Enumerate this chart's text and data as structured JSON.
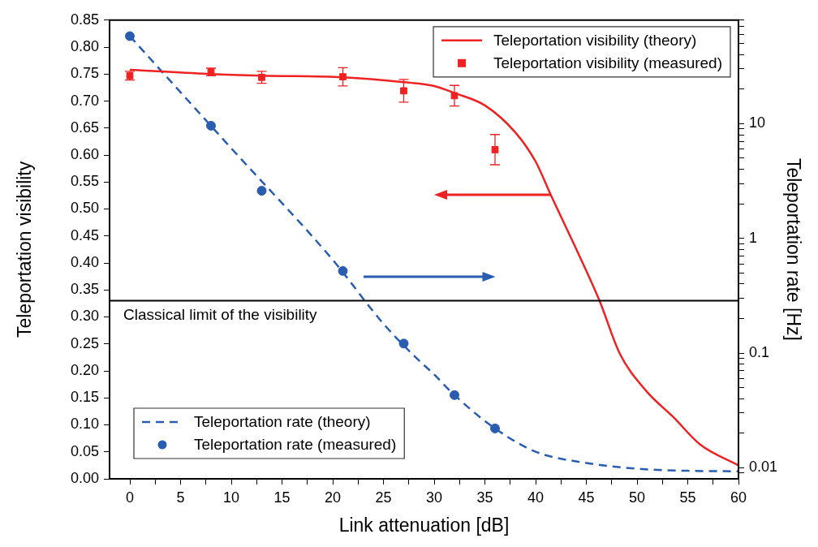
{
  "chart_data": {
    "type": "line",
    "xlabel": "Link attenuation [dB]",
    "ylabel": "Teleportation visibility",
    "y2label": "Teleportation rate [Hz]",
    "xlim": [
      -2,
      60
    ],
    "xticks": [
      0,
      {
        "value": 2.5,
        "label": null
      },
      5,
      {
        "value": 7.5,
        "label": null
      },
      10,
      {
        "value": 12.5,
        "label": null
      },
      15,
      {
        "value": 17.5,
        "label": null
      },
      20,
      {
        "value": 22.5,
        "label": null
      },
      25,
      {
        "value": 27.5,
        "label": null
      },
      30,
      {
        "value": 32.5,
        "label": null
      },
      35,
      {
        "value": 37.5,
        "label": null
      },
      40,
      {
        "value": 42.5,
        "label": null
      },
      45,
      {
        "value": 47.5,
        "label": null
      },
      50,
      {
        "value": 52.5,
        "label": null
      },
      55,
      {
        "value": 57.5,
        "label": null
      },
      60
    ],
    "ylim": [
      0,
      0.85
    ],
    "yticks": [
      {
        "value": 0,
        "label": "0.00"
      },
      {
        "value": 0.05,
        "label": "0.05"
      },
      {
        "value": 0.1,
        "label": "0.10"
      },
      {
        "value": 0.15,
        "label": "0.15"
      },
      {
        "value": 0.2,
        "label": "0.20"
      },
      {
        "value": 0.25,
        "label": "0.25"
      },
      {
        "value": 0.3,
        "label": "0.30"
      },
      {
        "value": 0.35,
        "label": "0.35"
      },
      {
        "value": 0.4,
        "label": "0.40"
      },
      {
        "value": 0.45,
        "label": "0.45"
      },
      {
        "value": 0.5,
        "label": "0.50"
      },
      {
        "value": 0.55,
        "label": "0.55"
      },
      {
        "value": 0.6,
        "label": "0.60"
      },
      {
        "value": 0.65,
        "label": "0.65"
      },
      {
        "value": 0.7,
        "label": "0.70"
      },
      {
        "value": 0.75,
        "label": "0.75"
      },
      {
        "value": 0.8,
        "label": "0.80"
      },
      {
        "value": 0.85,
        "label": "0.85"
      }
    ],
    "y2lim": [
      0.008,
      80
    ],
    "y2ticks": [
      {
        "value": 0.009,
        "label": null
      },
      0.01,
      {
        "value": 0.02,
        "label": null
      },
      {
        "value": 0.03,
        "label": null
      },
      {
        "value": 0.04,
        "label": null
      },
      {
        "value": 0.05,
        "label": null
      },
      {
        "value": 0.06,
        "label": null
      },
      {
        "value": 0.07,
        "label": null
      },
      {
        "value": 0.08,
        "label": null
      },
      {
        "value": 0.09,
        "label": null
      },
      0.1,
      {
        "value": 0.2,
        "label": null
      },
      {
        "value": 0.3,
        "label": null
      },
      {
        "value": 0.4,
        "label": null
      },
      {
        "value": 0.5,
        "label": null
      },
      {
        "value": 0.6,
        "label": null
      },
      {
        "value": 0.7,
        "label": null
      },
      {
        "value": 0.8,
        "label": null
      },
      {
        "value": 0.9,
        "label": null
      },
      1,
      {
        "value": 2,
        "label": null
      },
      {
        "value": 3,
        "label": null
      },
      {
        "value": 4,
        "label": null
      },
      {
        "value": 5,
        "label": null
      },
      {
        "value": 6,
        "label": null
      },
      {
        "value": 7,
        "label": null
      },
      {
        "value": 8,
        "label": null
      },
      {
        "value": 9,
        "label": null
      },
      10,
      {
        "value": 20,
        "label": null
      },
      {
        "value": 30,
        "label": null
      },
      {
        "value": 40,
        "label": null
      },
      {
        "value": 50,
        "label": null
      },
      {
        "value": 60,
        "label": null
      },
      {
        "value": 70,
        "label": null
      },
      {
        "value": 80,
        "label": null
      }
    ],
    "log": "y2",
    "grid": false,
    "legend": "top right",
    "ref_lines": [
      {
        "axis": "y",
        "value": 0.33,
        "label": "Classical limit of the visibility",
        "color": "#000000"
      }
    ],
    "series": [
      {
        "name": "Teleportation visibility (theory)",
        "type": "line",
        "color": "#ee2222",
        "marker": "none",
        "line_style": "solid",
        "x": [
          0,
          8,
          13,
          21,
          27,
          30,
          32,
          35,
          38,
          40,
          41.5,
          43.9,
          46.3,
          48.3,
          50.9,
          53.6,
          56.2,
          60
        ],
        "values": [
          0.758,
          0.75,
          0.747,
          0.744,
          0.735,
          0.728,
          0.715,
          0.692,
          0.642,
          0.588,
          0.526,
          0.43,
          0.33,
          0.232,
          0.163,
          0.114,
          0.064,
          0.025
        ]
      },
      {
        "name": "Teleportation visibility (measured)",
        "type": "scatter",
        "color": "#ee2222",
        "marker": "square",
        "x": [
          0,
          8,
          13,
          21,
          27,
          32,
          36
        ],
        "values": [
          0.747,
          0.754,
          0.744,
          0.745,
          0.719,
          0.71,
          0.61
        ],
        "errors": [
          0.008,
          0.007,
          0.011,
          0.017,
          0.021,
          0.019,
          0.028
        ]
      },
      {
        "name": "Teleportation rate (theory)",
        "type": "line",
        "axis": "y2",
        "color": "#2a5db0",
        "marker": "none",
        "line_style": "dashed",
        "x": [
          0,
          10,
          20,
          25,
          28,
          30,
          32,
          36,
          40,
          45,
          50,
          55,
          60
        ],
        "values": [
          58,
          6.1,
          0.65,
          0.18,
          0.095,
          0.065,
          0.043,
          0.022,
          0.0138,
          0.011,
          0.0098,
          0.0094,
          0.0093
        ]
      },
      {
        "name": "Teleportation rate (measured)",
        "type": "scatter",
        "axis": "y2",
        "color": "#2a5db0",
        "marker": "circle",
        "x": [
          0,
          8,
          13,
          21,
          27,
          32,
          36
        ],
        "values": [
          58,
          9.6,
          2.6,
          0.52,
          0.121,
          0.043,
          0.022
        ]
      }
    ]
  }
}
